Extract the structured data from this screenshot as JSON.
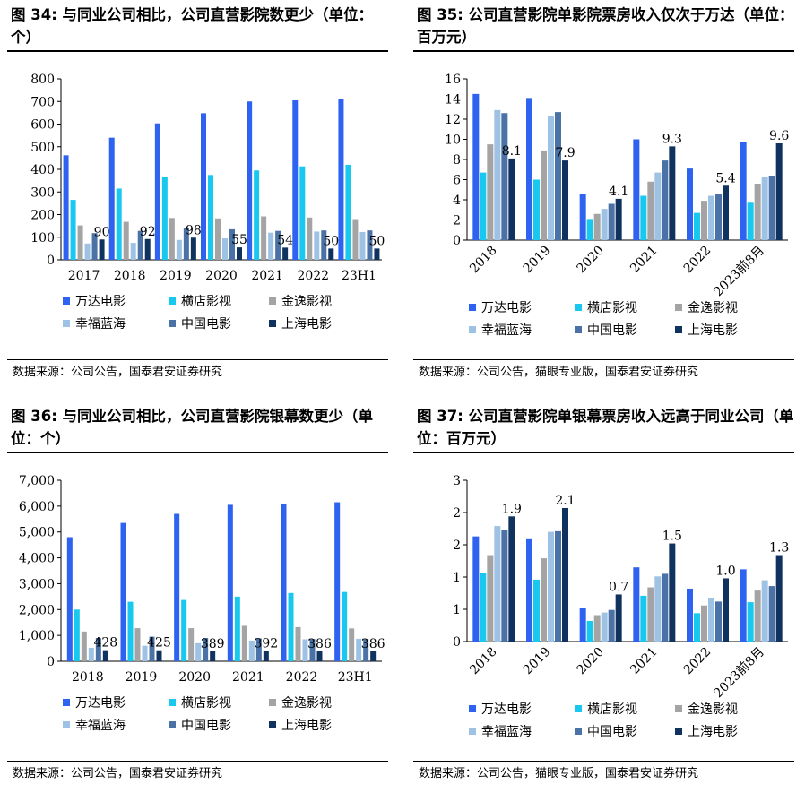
{
  "colors": {
    "万达电影": "#2e62f0",
    "横店影视": "#19c8ef",
    "金逸影视": "#a4a4a4",
    "幸福蓝海": "#9dc2e4",
    "中国电影": "#4a72a6",
    "上海电影": "#10325e"
  },
  "panels": [
    {
      "title": "图 34: 与同业公司相比，公司直营影院数更少（单位：个）",
      "source": "数据来源：公司公告，国泰君安证券研究"
    },
    {
      "title": "图 35: 公司直营影院单影院票房收入仅次于万达（单位：百万元）",
      "source": "数据来源：公司公告，猫眼专业版，国泰君安证券研究"
    },
    {
      "title": "图 36: 与同业公司相比，公司直营影院银幕数更少（单位：个）",
      "source": "数据来源：公司公告，国泰君安证券研究"
    },
    {
      "title": "图 37: 公司直营影院单银幕票房收入远高于同业公司（单位：百万元）",
      "source": "数据来源：公司公告，猫眼专业版，国泰君安证券研究"
    }
  ],
  "chart_data": [
    {
      "type": "bar",
      "categories": [
        "2017",
        "2018",
        "2019",
        "2020",
        "2021",
        "2022",
        "23H1"
      ],
      "ylim": [
        0,
        800
      ],
      "yticks": [
        "0",
        "100",
        "200",
        "300",
        "400",
        "500",
        "600",
        "700",
        "800"
      ],
      "ytick_values": [
        0,
        100,
        200,
        300,
        400,
        500,
        600,
        700,
        800
      ],
      "rotate_x": false,
      "series": [
        {
          "name": "万达电影",
          "values": [
            462,
            540,
            603,
            648,
            700,
            705,
            710
          ]
        },
        {
          "name": "横店影视",
          "values": [
            265,
            315,
            365,
            375,
            395,
            413,
            420
          ]
        },
        {
          "name": "金逸影视",
          "values": [
            152,
            168,
            185,
            183,
            192,
            187,
            180
          ]
        },
        {
          "name": "幸福蓝海",
          "values": [
            72,
            75,
            88,
            95,
            120,
            125,
            123
          ]
        },
        {
          "name": "中国电影",
          "values": [
            118,
            128,
            140,
            135,
            128,
            130,
            130
          ]
        },
        {
          "name": "上海电影",
          "values": [
            90,
            92,
            98,
            55,
            54,
            50,
            50
          ]
        }
      ],
      "data_labels": [
        "90",
        "92",
        "98",
        "55",
        "54",
        "50",
        "50"
      ]
    },
    {
      "type": "bar",
      "categories": [
        "2018",
        "2019",
        "2020",
        "2021",
        "2022",
        "2023前8月"
      ],
      "ylim": [
        0,
        16
      ],
      "yticks": [
        "0",
        "2",
        "4",
        "6",
        "8",
        "10",
        "12",
        "14",
        "16"
      ],
      "ytick_values": [
        0,
        2,
        4,
        6,
        8,
        10,
        12,
        14,
        16
      ],
      "rotate_x": true,
      "series": [
        {
          "name": "万达电影",
          "values": [
            14.5,
            14.1,
            4.6,
            10.0,
            7.1,
            9.7
          ]
        },
        {
          "name": "横店影视",
          "values": [
            6.7,
            6.0,
            2.1,
            4.4,
            2.7,
            3.8
          ]
        },
        {
          "name": "金逸影视",
          "values": [
            9.5,
            8.9,
            2.6,
            5.8,
            3.9,
            5.6
          ]
        },
        {
          "name": "幸福蓝海",
          "values": [
            12.9,
            12.3,
            3.1,
            6.7,
            4.4,
            6.3
          ]
        },
        {
          "name": "中国电影",
          "values": [
            12.6,
            12.7,
            3.6,
            7.9,
            4.6,
            6.4
          ]
        },
        {
          "name": "上海电影",
          "values": [
            8.1,
            7.9,
            4.1,
            9.3,
            5.4,
            9.6
          ]
        }
      ],
      "data_labels": [
        "8.1",
        "7.9",
        "4.1",
        "9.3",
        "5.4",
        "9.6"
      ]
    },
    {
      "type": "bar",
      "categories": [
        "2018",
        "2019",
        "2020",
        "2021",
        "2022",
        "23H1"
      ],
      "ylim": [
        0,
        7000
      ],
      "yticks": [
        "0",
        "1,000",
        "2,000",
        "3,000",
        "4,000",
        "5,000",
        "6,000",
        "7,000"
      ],
      "ytick_values": [
        0,
        1000,
        2000,
        3000,
        4000,
        5000,
        6000,
        7000
      ],
      "rotate_x": false,
      "series": [
        {
          "name": "万达电影",
          "values": [
            4800,
            5350,
            5700,
            6050,
            6100,
            6150
          ]
        },
        {
          "name": "横店影视",
          "values": [
            2000,
            2300,
            2370,
            2500,
            2640,
            2680
          ]
        },
        {
          "name": "金逸影视",
          "values": [
            1150,
            1280,
            1280,
            1370,
            1320,
            1270
          ]
        },
        {
          "name": "幸福蓝海",
          "values": [
            520,
            600,
            700,
            800,
            850,
            870
          ]
        },
        {
          "name": "中国电影",
          "values": [
            900,
            950,
            900,
            880,
            860,
            860
          ]
        },
        {
          "name": "上海电影",
          "values": [
            428,
            425,
            389,
            392,
            386,
            386
          ]
        }
      ],
      "data_labels": [
        "428",
        "425",
        "389",
        "392",
        "386",
        "386"
      ]
    },
    {
      "type": "bar",
      "categories": [
        "2018",
        "2019",
        "2020",
        "2021",
        "2022",
        "2023前8月"
      ],
      "ylim": [
        0,
        2.5
      ],
      "yticks": [
        "0",
        "1",
        "1",
        "2",
        "2",
        "3"
      ],
      "ytick_values": [
        0,
        0.5,
        1.0,
        1.5,
        2.0,
        2.5
      ],
      "rotate_x": true,
      "series": [
        {
          "name": "万达电影",
          "values": [
            1.63,
            1.6,
            0.52,
            1.15,
            0.82,
            1.12
          ]
        },
        {
          "name": "横店影视",
          "values": [
            1.06,
            0.96,
            0.32,
            0.71,
            0.44,
            0.61
          ]
        },
        {
          "name": "金逸影视",
          "values": [
            1.34,
            1.29,
            0.41,
            0.84,
            0.56,
            0.79
          ]
        },
        {
          "name": "幸福蓝海",
          "values": [
            1.79,
            1.7,
            0.45,
            1.01,
            0.68,
            0.95
          ]
        },
        {
          "name": "中国电影",
          "values": [
            1.73,
            1.71,
            0.49,
            1.05,
            0.62,
            0.86
          ]
        },
        {
          "name": "上海电影",
          "values": [
            1.94,
            2.07,
            0.73,
            1.52,
            0.98,
            1.34
          ]
        }
      ],
      "data_labels": [
        "1.9",
        "2.1",
        "0.7",
        "1.5",
        "1.0",
        "1.3"
      ]
    }
  ]
}
